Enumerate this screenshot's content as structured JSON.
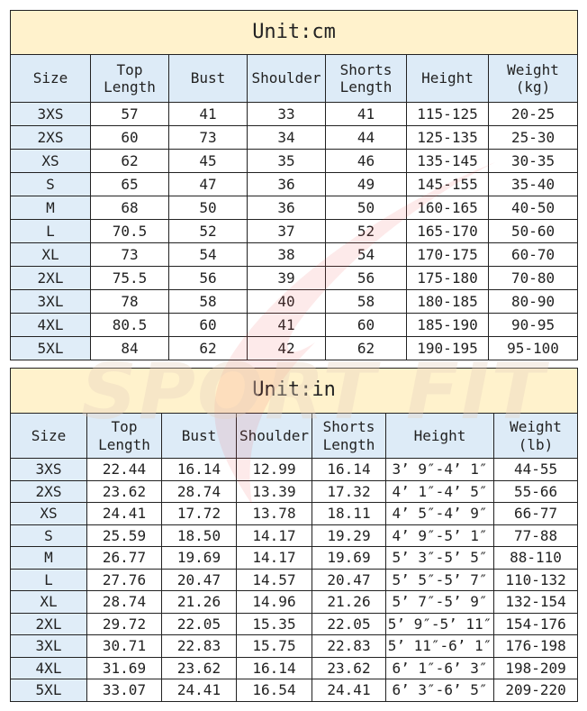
{
  "watermark": "SPORT FIT",
  "cm_table": {
    "title": "Unit:cm",
    "headers": [
      [
        "Size"
      ],
      [
        "Top",
        "Length"
      ],
      [
        "Bust"
      ],
      [
        "Shoulder"
      ],
      [
        "Shorts",
        "Length"
      ],
      [
        "Height"
      ],
      [
        "Weight",
        "(kg)"
      ]
    ],
    "rows": [
      [
        "3XS",
        "57",
        "41",
        "33",
        "41",
        "115-125",
        "20-25"
      ],
      [
        "2XS",
        "60",
        "73",
        "34",
        "44",
        "125-135",
        "25-30"
      ],
      [
        "XS",
        "62",
        "45",
        "35",
        "46",
        "135-145",
        "30-35"
      ],
      [
        "S",
        "65",
        "47",
        "36",
        "49",
        "145-155",
        "35-40"
      ],
      [
        "M",
        "68",
        "50",
        "36",
        "50",
        "160-165",
        "40-50"
      ],
      [
        "L",
        "70.5",
        "52",
        "37",
        "52",
        "165-170",
        "50-60"
      ],
      [
        "XL",
        "73",
        "54",
        "38",
        "54",
        "170-175",
        "60-70"
      ],
      [
        "2XL",
        "75.5",
        "56",
        "39",
        "56",
        "175-180",
        "70-80"
      ],
      [
        "3XL",
        "78",
        "58",
        "40",
        "58",
        "180-185",
        "80-90"
      ],
      [
        "4XL",
        "80.5",
        "60",
        "41",
        "60",
        "185-190",
        "90-95"
      ],
      [
        "5XL",
        "84",
        "62",
        "42",
        "62",
        "190-195",
        "95-100"
      ]
    ]
  },
  "in_table": {
    "title": "Unit:in",
    "headers": [
      [
        "Size"
      ],
      [
        "Top",
        "Length"
      ],
      [
        "Bust"
      ],
      [
        "Shoulder"
      ],
      [
        "Shorts",
        "Length"
      ],
      [
        "Height"
      ],
      [
        "Weight",
        "(lb)"
      ]
    ],
    "rows": [
      [
        "3XS",
        "22.44",
        "16.14",
        "12.99",
        "16.14",
        "3’ 9″-4’ 1″",
        "44-55"
      ],
      [
        "2XS",
        "23.62",
        "28.74",
        "13.39",
        "17.32",
        "4’ 1″-4’ 5″",
        "55-66"
      ],
      [
        "XS",
        "24.41",
        "17.72",
        "13.78",
        "18.11",
        "4’ 5″-4’ 9″",
        "66-77"
      ],
      [
        "S",
        "25.59",
        "18.50",
        "14.17",
        "19.29",
        "4’ 9″-5’ 1″",
        "77-88"
      ],
      [
        "M",
        "26.77",
        "19.69",
        "14.17",
        "19.69",
        "5’ 3″-5’ 5″",
        "88-110"
      ],
      [
        "L",
        "27.76",
        "20.47",
        "14.57",
        "20.47",
        "5’ 5″-5’ 7″",
        "110-132"
      ],
      [
        "XL",
        "28.74",
        "21.26",
        "14.96",
        "21.26",
        "5’ 7″-5’ 9″",
        "132-154"
      ],
      [
        "2XL",
        "29.72",
        "22.05",
        "15.35",
        "22.05",
        "5’ 9″-5’ 11″",
        "154-176"
      ],
      [
        "3XL",
        "30.71",
        "22.83",
        "15.75",
        "22.83",
        "5’ 11″-6’ 1″",
        "176-198"
      ],
      [
        "4XL",
        "31.69",
        "23.62",
        "16.14",
        "23.62",
        "6’ 1″-6’ 3″",
        "198-209"
      ],
      [
        "5XL",
        "33.07",
        "24.41",
        "16.54",
        "24.41",
        "6’ 3″-6’ 5″",
        "209-220"
      ]
    ]
  }
}
